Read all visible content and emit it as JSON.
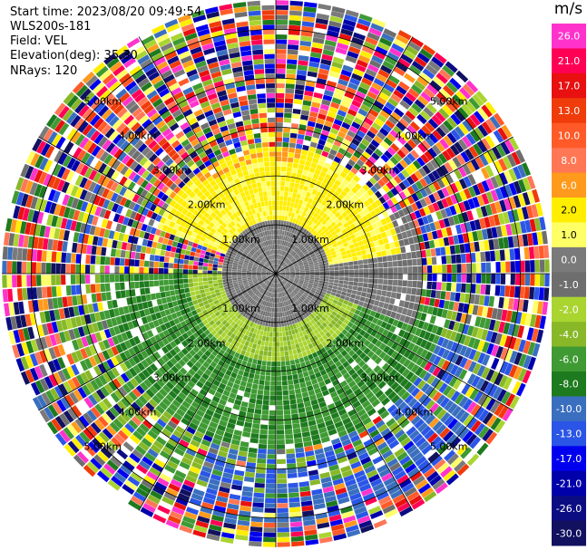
{
  "header": {
    "start_time": "Start time: 2023/08/20 09:49:54",
    "device": "WLS200s-181",
    "field": "Field: VEL",
    "elevation": "Elevation(deg): 35.30",
    "nrays": "NRays: 120"
  },
  "chart_data": {
    "type": "heatmap",
    "projection": "polar-ppi",
    "field": "VEL",
    "unit": "m/s",
    "n_rays": 120,
    "elevation_deg": 35.3,
    "range_rings_km": [
      1.0,
      2.0,
      3.0,
      4.0,
      5.0
    ],
    "ring_labels": [
      "1.00km",
      "2.00km",
      "3.00km",
      "4.00km",
      "5.00km"
    ],
    "max_range_km": 5.6,
    "radial_lines_deg": [
      0,
      30,
      60,
      90,
      120,
      150,
      180,
      210,
      240,
      270,
      300,
      330
    ],
    "colorbar": {
      "ticks": [
        "26.0",
        "21.0",
        "17.0",
        "13.0",
        "10.0",
        "8.0",
        "6.0",
        "2.0",
        "1.0",
        "0.0",
        "-1.0",
        "-2.0",
        "-4.0",
        "-6.0",
        "-8.0",
        "-10.0",
        "-13.0",
        "-17.0",
        "-21.0",
        "-26.0",
        "-30.0"
      ],
      "colors": [
        "#ff33cc",
        "#ff0055",
        "#e81010",
        "#f03c0a",
        "#ff5a28",
        "#ff7755",
        "#ff9a1c",
        "#ffee00",
        "#ffff66",
        "#7a7a7a",
        "#6e6e6e",
        "#aad430",
        "#88b828",
        "#3f9a33",
        "#1e7a1e",
        "#3a6fbf",
        "#2a55e6",
        "#0000ee",
        "#0000aa",
        "#0c0c82",
        "#111160"
      ]
    },
    "velocity_pattern": {
      "inner_gray_km": 1.15,
      "yellow_band_km": [
        1.1,
        2.6
      ],
      "green_band_km": [
        1.1,
        3.6
      ],
      "noise_start_km": 2.4
    }
  }
}
